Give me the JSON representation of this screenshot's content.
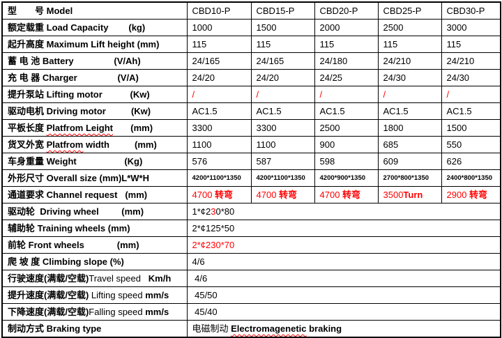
{
  "colors": {
    "accent_red": "#ff0000",
    "border": "#000000",
    "background": "#ffffff",
    "text": "#000000"
  },
  "table": {
    "columns": [
      "cbd10p",
      "cbd15p",
      "cbd20p",
      "cbd25p",
      "cbd30p"
    ],
    "rows": [
      {
        "name": "model",
        "label": [
          {
            "t": "型　　号 ",
            "b": 1
          },
          {
            "t": "Model",
            "b": 1
          }
        ],
        "cells": [
          "CBD10-P",
          "CBD15-P",
          "CBD20-P",
          "CBD25-P",
          "CBD30-P"
        ]
      },
      {
        "name": "load-capacity",
        "label": [
          {
            "t": "额定载重 ",
            "b": 1
          },
          {
            "t": "Load Capacity        (kg)",
            "b": 1
          }
        ],
        "cells": [
          "1000",
          "1500",
          "2000",
          "2500",
          "3000"
        ]
      },
      {
        "name": "max-lift-height",
        "label": [
          {
            "t": "起升高度 ",
            "b": 1
          },
          {
            "t": "Maximum Lift height (mm)",
            "b": 1
          }
        ],
        "cells": [
          "115",
          "115",
          "115",
          "115",
          "115"
        ]
      },
      {
        "name": "battery",
        "label": [
          {
            "t": "蓄 电 池 ",
            "b": 1
          },
          {
            "t": "Battery                (V/Ah)",
            "b": 1
          }
        ],
        "cells": [
          "24/165",
          "24/165",
          "24/180",
          "24/210",
          "24/210"
        ]
      },
      {
        "name": "charger",
        "label": [
          {
            "t": "充 电 器 ",
            "b": 1
          },
          {
            "t": "Charger                (V/A)",
            "b": 1
          }
        ],
        "cells": [
          "24/20",
          "24/20",
          "24/25",
          "24/30",
          "24/30"
        ]
      },
      {
        "name": "lifting-motor",
        "label": [
          {
            "t": "提升泵站 ",
            "b": 1
          },
          {
            "t": "Lifting motor           (Kw)",
            "b": 1
          }
        ],
        "cells": [
          [
            {
              "t": "/",
              "red": 1
            }
          ],
          [
            {
              "t": "/",
              "red": 1
            }
          ],
          [
            {
              "t": "/",
              "red": 1
            }
          ],
          [
            {
              "t": "/",
              "red": 1
            }
          ],
          [
            {
              "t": "/",
              "red": 1
            }
          ]
        ]
      },
      {
        "name": "driving-motor",
        "label": [
          {
            "t": "驱动电机 ",
            "b": 1
          },
          {
            "t": "Driving motor          (Kw)",
            "b": 1
          }
        ],
        "cells": [
          "AC1.5",
          "AC1.5",
          "AC1.5",
          "AC1.5",
          "AC1.5"
        ]
      },
      {
        "name": "platform-length",
        "label": [
          {
            "t": "平板长度 ",
            "b": 1
          },
          {
            "t": "Platfrom Leight",
            "b": 1,
            "wavy": 1
          },
          {
            "t": "       (mm)",
            "b": 1
          }
        ],
        "cells": [
          "3300",
          "3300",
          "2500",
          "1800",
          "1500"
        ]
      },
      {
        "name": "platform-width",
        "label": [
          {
            "t": "货叉外宽 ",
            "b": 1
          },
          {
            "t": "Platfrom",
            "b": 1,
            "wavy": 1
          },
          {
            "t": " width          (mm)",
            "b": 1
          }
        ],
        "cells": [
          "1100",
          "1100",
          "900",
          "685",
          "550"
        ]
      },
      {
        "name": "weight",
        "label": [
          {
            "t": "车身重量 ",
            "b": 1
          },
          {
            "t": "Weight                   (Kg)",
            "b": 1
          }
        ],
        "cells": [
          "576",
          "587",
          "598",
          "609",
          "626"
        ]
      },
      {
        "name": "overall-size",
        "label": [
          {
            "t": "外形尺寸 ",
            "b": 1
          },
          {
            "t": "Overall size (mm)L*W*H",
            "b": 1
          }
        ],
        "small": 1,
        "cells": [
          "4200*1100*1350",
          "4200*1100*1350",
          "4200*900*1350",
          "2700*800*1350",
          "2400*800*1350"
        ]
      },
      {
        "name": "channel-request",
        "label": [
          {
            "t": "通道要求 ",
            "b": 1
          },
          {
            "t": "Channel request   (mm)",
            "b": 1
          }
        ],
        "cells": [
          [
            {
              "t": "4700 ",
              "red": 1
            },
            {
              "t": "转弯",
              "red": 1,
              "b": 1
            }
          ],
          [
            {
              "t": "4700 ",
              "red": 1
            },
            {
              "t": "转弯",
              "red": 1,
              "b": 1
            }
          ],
          [
            {
              "t": "4700 ",
              "red": 1
            },
            {
              "t": "转弯",
              "red": 1,
              "b": 1
            }
          ],
          [
            {
              "t": "3500",
              "red": 1
            },
            {
              "t": "Turn",
              "red": 1,
              "b": 1
            }
          ],
          [
            {
              "t": "2900 ",
              "red": 1
            },
            {
              "t": "转弯",
              "red": 1,
              "b": 1
            }
          ]
        ]
      },
      {
        "name": "driving-wheel",
        "label": [
          {
            "t": "驱动轮  ",
            "b": 1
          },
          {
            "t": "Driving wheel         (mm)",
            "b": 1
          }
        ],
        "merged": 1,
        "cells": [
          [
            {
              "t": "1*¢2"
            },
            {
              "t": "3",
              "red": 1
            },
            {
              "t": "0*80"
            }
          ]
        ]
      },
      {
        "name": "training-wheels",
        "label": [
          {
            "t": "辅助轮 ",
            "b": 1
          },
          {
            "t": "Training wheels (mm)",
            "b": 1
          }
        ],
        "merged": 1,
        "cells": [
          "2*¢125*50"
        ]
      },
      {
        "name": "front-wheels",
        "label": [
          {
            "t": "前轮 ",
            "b": 1
          },
          {
            "t": "Front wheels             (mm)",
            "b": 1
          }
        ],
        "merged": 1,
        "cells": [
          [
            {
              "t": "2*¢230*70",
              "red": 1
            }
          ]
        ]
      },
      {
        "name": "climbing-slope",
        "label": [
          {
            "t": "爬 坡 度 ",
            "b": 1
          },
          {
            "t": "Climbing slope (%)",
            "b": 1
          }
        ],
        "merged": 1,
        "cells": [
          "4/6"
        ]
      },
      {
        "name": "travel-speed",
        "label": [
          {
            "t": "行驶速度(满载/空载)",
            "b": 1
          },
          {
            "t": "Travel speed "
          },
          {
            "t": "  Km/h",
            "b": 1
          }
        ],
        "merged": 1,
        "cells": [
          " 4/6"
        ]
      },
      {
        "name": "lifting-speed",
        "label": [
          {
            "t": "提升速度(满载/空载) ",
            "b": 1
          },
          {
            "t": "Lifting speed "
          },
          {
            "t": "mm/s",
            "b": 1
          }
        ],
        "merged": 1,
        "cells": [
          " 45/50"
        ]
      },
      {
        "name": "falling-speed",
        "label": [
          {
            "t": "下降速度(满载/空载)",
            "b": 1
          },
          {
            "t": "Falling speed "
          },
          {
            "t": "mm/s",
            "b": 1
          }
        ],
        "merged": 1,
        "cells": [
          " 45/40"
        ]
      },
      {
        "name": "braking-type",
        "label": [
          {
            "t": "制动方式 ",
            "b": 1
          },
          {
            "t": "Braking type",
            "b": 1
          }
        ],
        "merged": 1,
        "cells": [
          [
            {
              "t": "电磁制动 "
            },
            {
              "t": "Electromagenetic",
              "b": 1,
              "wavy": 1
            },
            {
              "t": " braking",
              "b": 1
            }
          ]
        ]
      }
    ]
  }
}
